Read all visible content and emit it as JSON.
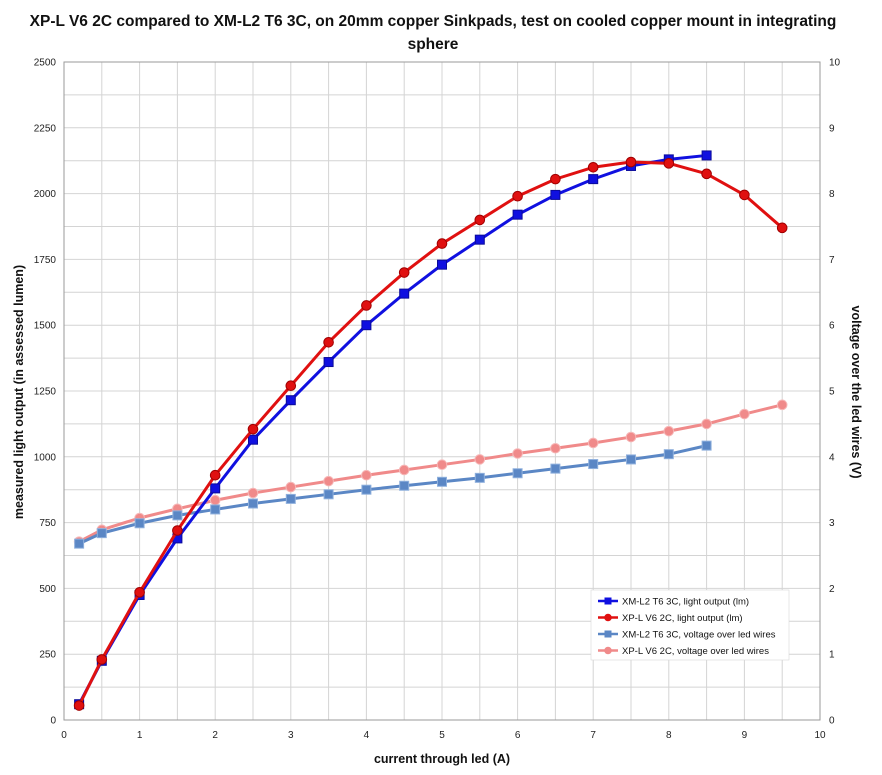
{
  "chart_data": {
    "type": "line",
    "title_lines": [
      "XP-L V6 2C compared to XM-L2 T6 3C, on 20mm copper Sinkpads, test on cooled copper mount in integrating",
      "sphere"
    ],
    "xlabel": "current through led (A)",
    "ylabel": "measured light output (in assessed lumen)",
    "y2label": "voltage over the led wires (V)",
    "xlim": [
      0,
      10
    ],
    "ylim": [
      0,
      2500
    ],
    "y2lim": [
      0,
      10
    ],
    "x_ticks": [
      "0",
      "1",
      "2",
      "3",
      "4",
      "5",
      "6",
      "7",
      "8",
      "9",
      "10"
    ],
    "y_ticks": [
      "0",
      "250",
      "500",
      "750",
      "1000",
      "1250",
      "1500",
      "1750",
      "2000",
      "2250",
      "2500"
    ],
    "y2_ticks": [
      "0",
      "1",
      "2",
      "3",
      "4",
      "5",
      "6",
      "7",
      "8",
      "9",
      "10"
    ],
    "grid": true,
    "legend_position": "bottom-right",
    "series": [
      {
        "name": "XM-L2 T6 3C, light output (lm)",
        "axis": "left",
        "color": "#1010e0",
        "marker": "square",
        "x": [
          0.2,
          0.5,
          1,
          1.5,
          2,
          2.5,
          3,
          3.5,
          4,
          4.5,
          5,
          5.5,
          6,
          6.5,
          7,
          7.5,
          8,
          8.5
        ],
        "y": [
          60,
          225,
          475,
          690,
          880,
          1065,
          1215,
          1360,
          1500,
          1620,
          1730,
          1825,
          1920,
          1995,
          2055,
          2105,
          2130,
          2145
        ]
      },
      {
        "name": "XP-L V6 2C, light output (lm)",
        "axis": "left",
        "color": "#e01010",
        "marker": "circle",
        "x": [
          0.2,
          0.5,
          1,
          1.5,
          2,
          2.5,
          3,
          3.5,
          4,
          4.5,
          5,
          5.5,
          6,
          6.5,
          7,
          7.5,
          8,
          8.5,
          9,
          9.5
        ],
        "y": [
          55,
          230,
          485,
          720,
          930,
          1105,
          1270,
          1435,
          1575,
          1700,
          1810,
          1900,
          1990,
          2055,
          2100,
          2120,
          2115,
          2075,
          1995,
          1870
        ]
      },
      {
        "name": "XM-L2 T6 3C, voltage over led wires",
        "axis": "right",
        "color": "#5b87c5",
        "marker": "square",
        "x": [
          0.2,
          0.5,
          1,
          1.5,
          2,
          2.5,
          3,
          3.5,
          4,
          4.5,
          5,
          5.5,
          6,
          6.5,
          7,
          7.5,
          8,
          8.5
        ],
        "y": [
          2.68,
          2.84,
          2.99,
          3.11,
          3.2,
          3.29,
          3.36,
          3.43,
          3.5,
          3.56,
          3.62,
          3.68,
          3.75,
          3.82,
          3.89,
          3.96,
          4.04,
          4.17
        ]
      },
      {
        "name": "XP-L V6 2C, voltage over led wires",
        "axis": "right",
        "color": "#f08a8a",
        "marker": "circle",
        "x": [
          0.2,
          0.5,
          1,
          1.5,
          2,
          2.5,
          3,
          3.5,
          4,
          4.5,
          5,
          5.5,
          6,
          6.5,
          7,
          7.5,
          8,
          8.5,
          9,
          9.5
        ],
        "y": [
          2.71,
          2.89,
          3.07,
          3.21,
          3.34,
          3.45,
          3.54,
          3.63,
          3.72,
          3.8,
          3.88,
          3.96,
          4.05,
          4.13,
          4.21,
          4.3,
          4.39,
          4.5,
          4.65,
          4.79
        ]
      }
    ]
  }
}
